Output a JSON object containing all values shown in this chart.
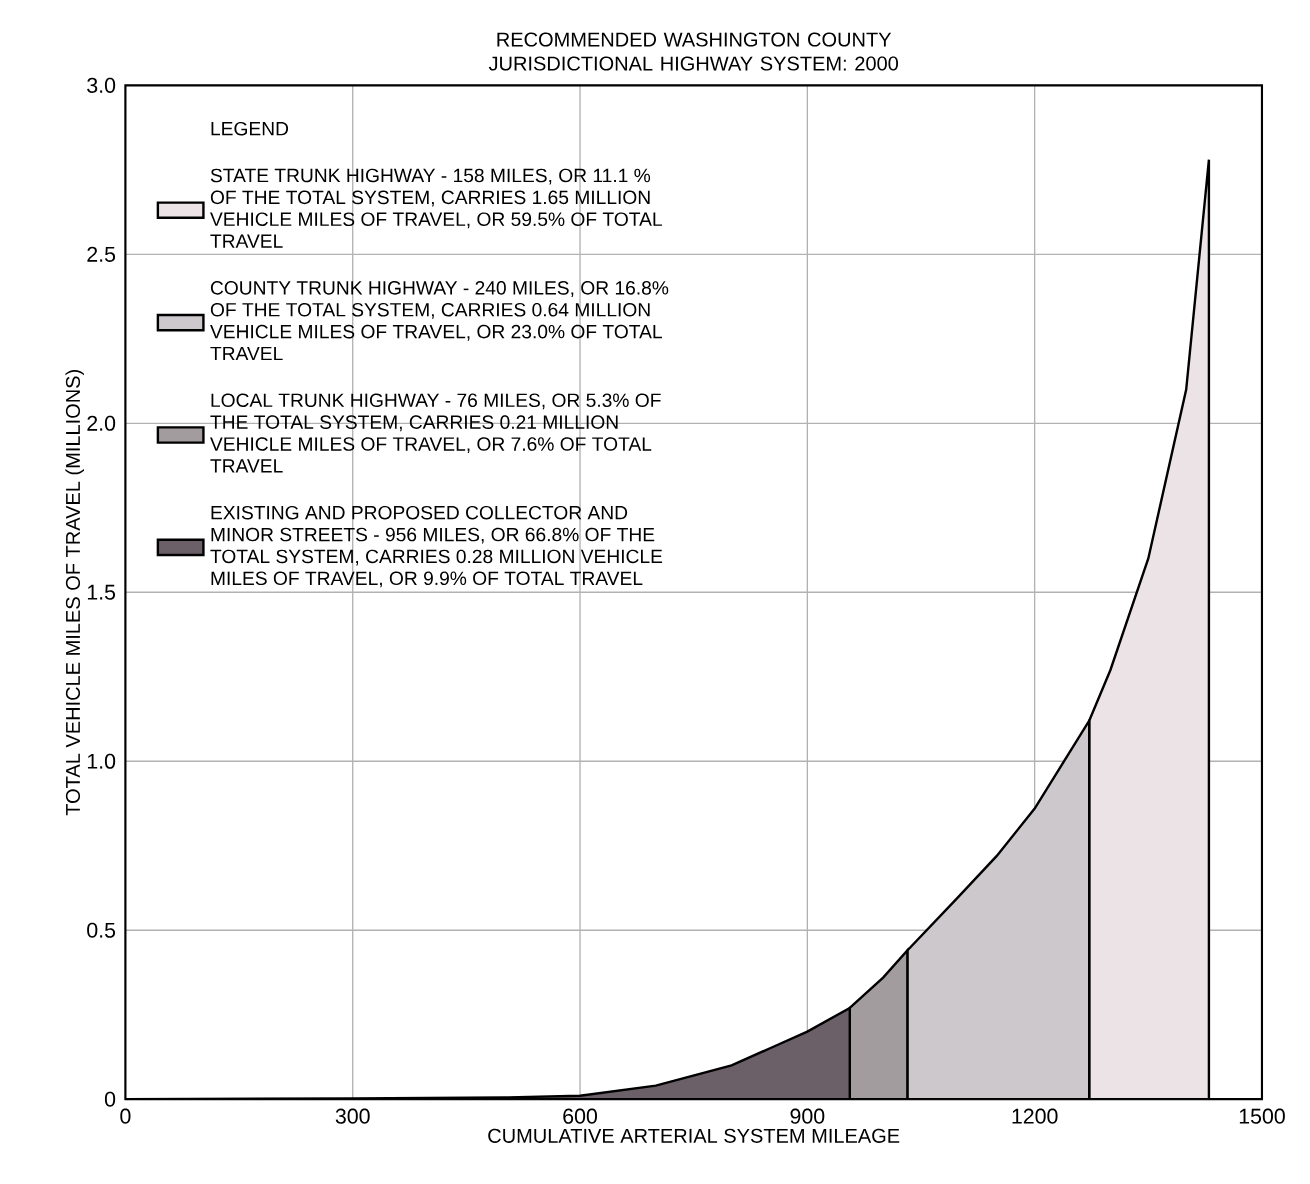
{
  "chart_data": {
    "type": "area",
    "title": "RECOMMENDED WASHINGTON COUNTY JURISDICTIONAL HIGHWAY SYSTEM: 2000",
    "xlabel": "CUMULATIVE ARTERIAL SYSTEM MILEAGE",
    "ylabel": "TOTAL VEHICLE MILES OF TRAVEL (MILLIONS)",
    "legend_title": "LEGEND",
    "xlim": [
      0,
      1500
    ],
    "xticks": [
      0,
      300,
      600,
      900,
      1200,
      1500
    ],
    "ylim": [
      0,
      3.0
    ],
    "yticks": [
      0,
      {
        "value": 0.5,
        "label": "0.5"
      },
      {
        "value": 1.0,
        "label": "1.0"
      },
      {
        "value": 1.5,
        "label": "1.5"
      },
      {
        "value": 2.0,
        "label": "2.0"
      },
      {
        "value": 2.5,
        "label": "2.5"
      },
      {
        "value": 3.0,
        "label": "3.0"
      }
    ],
    "grid": true,
    "legend": "top left",
    "series": [
      {
        "name": "STATE TRUNK HIGHWAY - 158 MILES, OR 11.1 % OF THE TOTAL SYSTEM, CARRIES 1.65 MILLION VEHICLE MILES OF TRAVEL, OR 59.5% OF TOTAL TRAVEL",
        "color": "#ebe3e6",
        "x": [
          1272,
          1300,
          1350,
          1400,
          1430
        ],
        "values": [
          1.12,
          1.27,
          1.6,
          2.1,
          2.78
        ]
      },
      {
        "name": "COUNTY TRUNK HIGHWAY - 240 MILES, OR 16.8% OF THE TOTAL SYSTEM, CARRIES 0.64 MILLION VEHICLE MILES OF TRAVEL, OR 23.0% OF TOTAL TRAVEL",
        "color": "#cdc8cb",
        "x": [
          1032,
          1100,
          1150,
          1200,
          1272
        ],
        "values": [
          0.44,
          0.6,
          0.72,
          0.86,
          1.12
        ]
      },
      {
        "name": "LOCAL TRUNK HIGHWAY - 76 MILES, OR 5.3% OF THE TOTAL SYSTEM, CARRIES 0.21 MILLION VEHICLE MILES OF TRAVEL, OR 7.6% OF TOTAL TRAVEL",
        "color": "#a39c9f",
        "x": [
          956,
          1000,
          1032
        ],
        "values": [
          0.27,
          0.36,
          0.44
        ]
      },
      {
        "name": "EXISTING AND PROPOSED COLLECTOR AND MINOR STREETS - 956 MILES, OR 66.8% OF THE TOTAL SYSTEM, CARRIES 0.28 MILLION VEHICLE MILES OF TRAVEL, OR 9.9% OF TOTAL TRAVEL",
        "color": "#6b6068",
        "x": [
          0,
          300,
          500,
          600,
          700,
          800,
          850,
          900,
          956
        ],
        "values": [
          0,
          0.002,
          0.005,
          0.01,
          0.04,
          0.1,
          0.15,
          0.2,
          0.27
        ]
      }
    ]
  }
}
